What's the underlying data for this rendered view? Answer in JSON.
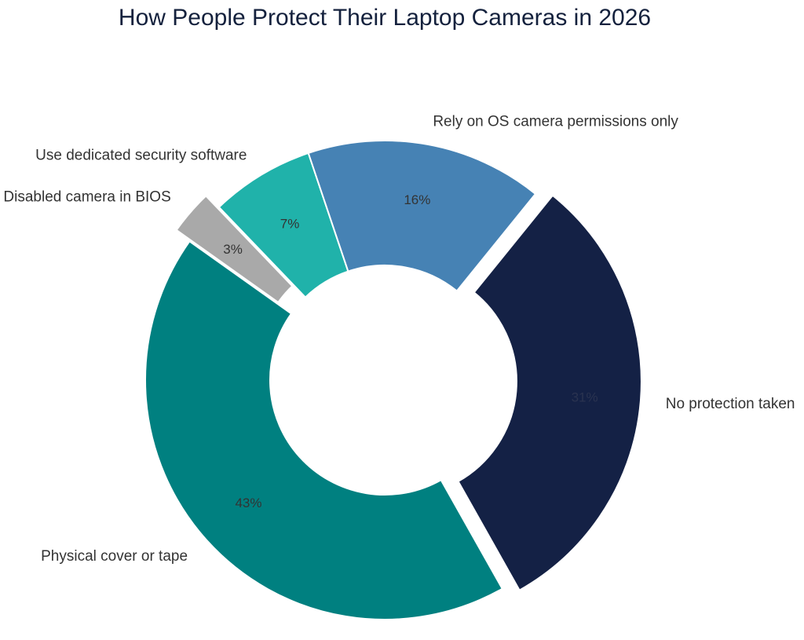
{
  "chart_data": {
    "type": "pie",
    "title": "How People Protect Their Laptop Cameras in 2026",
    "donut": true,
    "slices": [
      {
        "label": "No protection taken",
        "value": 31,
        "value_label": "31%",
        "color": "#142145",
        "text_color": "#2a3350",
        "exploded": true
      },
      {
        "label": "Physical cover or tape",
        "value": 43,
        "value_label": "43%",
        "color": "#008080",
        "text_color": "#333333",
        "exploded": false
      },
      {
        "label": "Disabled camera in BIOS",
        "value": 3,
        "value_label": "3%",
        "color": "#a9a9a9",
        "text_color": "#333333",
        "exploded": true
      },
      {
        "label": "Use dedicated security software",
        "value": 7,
        "value_label": "7%",
        "color": "#20b2aa",
        "text_color": "#333333",
        "exploded": false
      },
      {
        "label": "Rely on OS camera permissions only",
        "value": 16,
        "value_label": "16%",
        "color": "#4682b4",
        "text_color": "#333333",
        "exploded": false
      }
    ]
  }
}
